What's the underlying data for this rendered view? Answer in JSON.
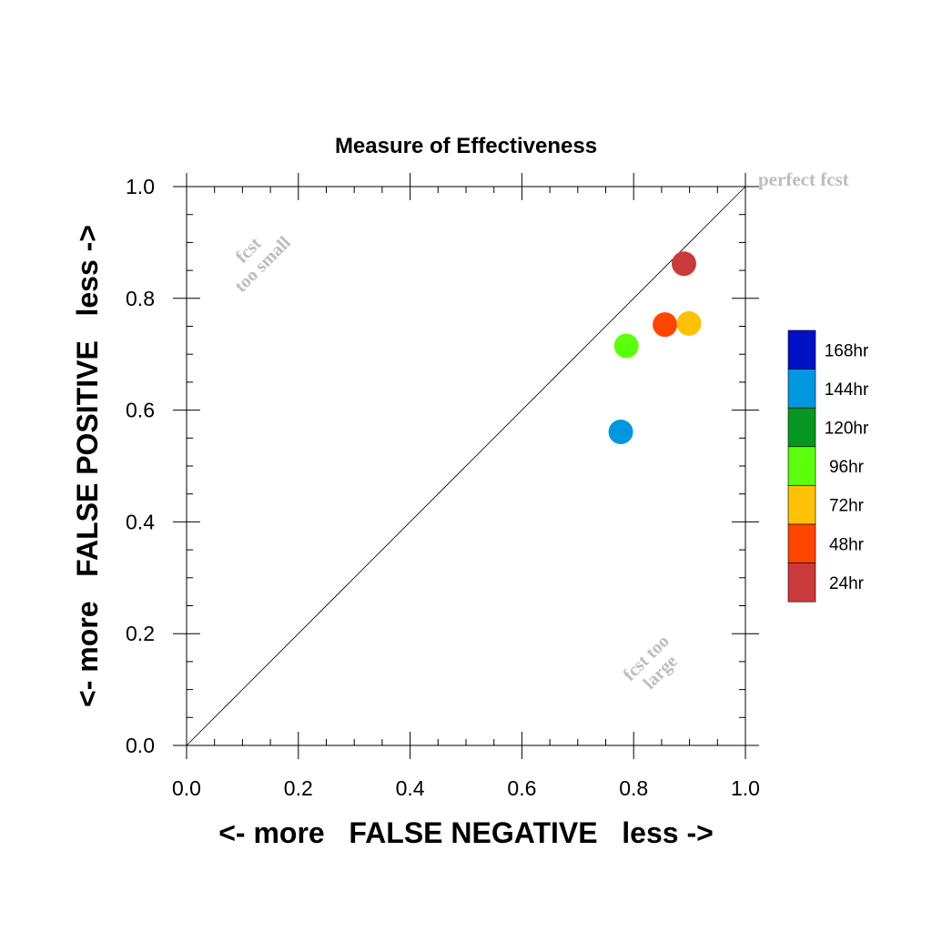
{
  "chart_data": {
    "type": "scatter",
    "title": "Measure of Effectiveness",
    "xlabel": "<- more   FALSE NEGATIVE   less ->",
    "ylabel": "<- more   FALSE POSITIVE   less ->",
    "xlim": [
      0,
      1
    ],
    "ylim": [
      0,
      1
    ],
    "x_ticks": [
      "0.0",
      "0.2",
      "0.4",
      "0.6",
      "0.8",
      "1.0"
    ],
    "y_ticks": [
      "0.0",
      "0.2",
      "0.4",
      "0.6",
      "0.8",
      "1.0"
    ],
    "grid": false,
    "reference_line": {
      "from": [
        0,
        0
      ],
      "to": [
        1,
        1
      ],
      "label": "perfect fcst"
    },
    "annotations": {
      "upper_left": [
        "fcst",
        "too small"
      ],
      "lower_right": [
        "fcst too",
        "large"
      ]
    },
    "legend_position": "right",
    "legend": [
      {
        "label": "168hr",
        "color": "#0012c6"
      },
      {
        "label": "144hr",
        "color": "#0097e0"
      },
      {
        "label": "120hr",
        "color": "#069720"
      },
      {
        "label": "96hr",
        "color": "#5cff0b"
      },
      {
        "label": "72hr",
        "color": "#ffc106"
      },
      {
        "label": "48hr",
        "color": "#ff4500"
      },
      {
        "label": "24hr",
        "color": "#cb3a3a"
      }
    ],
    "points": [
      {
        "series": "24hr",
        "x": 0.89,
        "y": 0.862,
        "color": "#cb3a3a"
      },
      {
        "series": "48hr",
        "x": 0.856,
        "y": 0.753,
        "color": "#ff4500"
      },
      {
        "series": "72hr",
        "x": 0.899,
        "y": 0.755,
        "color": "#ffc106"
      },
      {
        "series": "96hr",
        "x": 0.787,
        "y": 0.715,
        "color": "#5cff0b"
      },
      {
        "series": "144hr",
        "x": 0.777,
        "y": 0.561,
        "color": "#0097e0"
      }
    ]
  }
}
